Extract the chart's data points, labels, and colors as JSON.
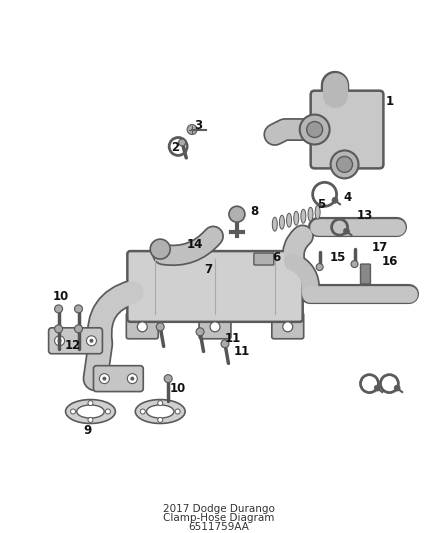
{
  "title": "2017 Dodge Durango",
  "subtitle": "Clamp-Hose Diagram",
  "part_number": "6511759AA",
  "bg_color": "#ffffff",
  "line_color": "#5a5a5a",
  "fill_light": "#d8d8d8",
  "fill_mid": "#b8b8b8",
  "fill_dark": "#888888",
  "figsize": [
    4.38,
    5.33
  ],
  "dpi": 100
}
